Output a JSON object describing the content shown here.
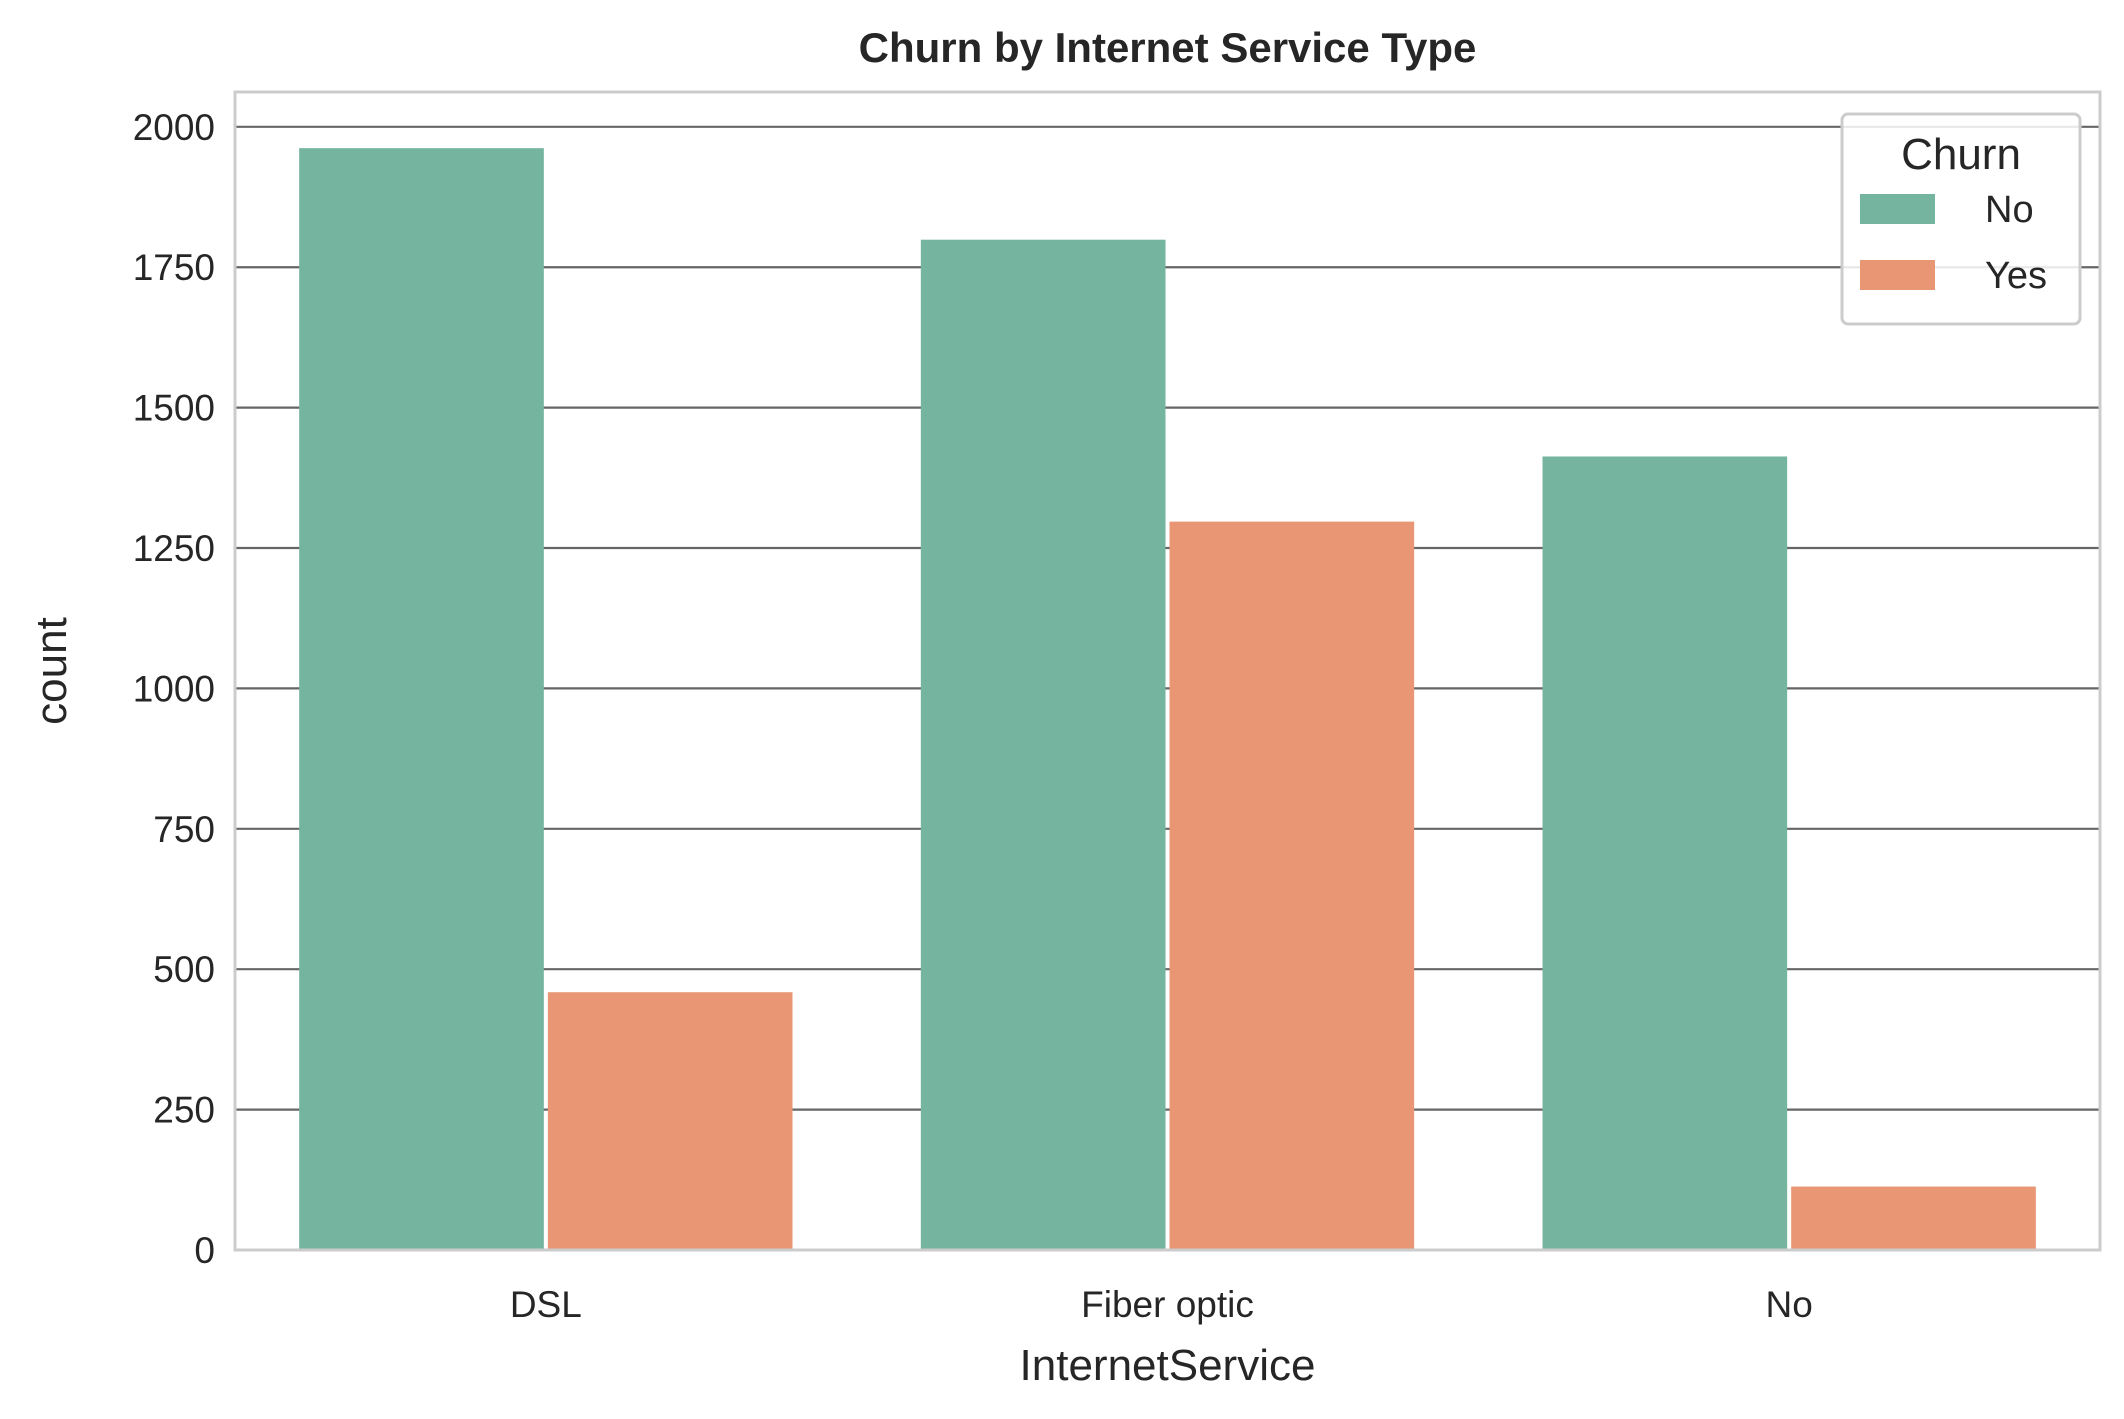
{
  "chart_data": {
    "type": "bar",
    "title": "Churn by Internet Service Type",
    "xlabel": "InternetService",
    "ylabel": "count",
    "categories": [
      "DSL",
      "Fiber optic",
      "No"
    ],
    "series": [
      {
        "name": "No",
        "values": [
          1962,
          1799,
          1413
        ],
        "color": "#75b5a0"
      },
      {
        "name": "Yes",
        "values": [
          459,
          1297,
          113
        ],
        "color": "#e99674"
      }
    ],
    "ylim": [
      0,
      2062
    ],
    "yticks": [
      0,
      250,
      500,
      750,
      1000,
      1250,
      1500,
      1750,
      2000
    ],
    "grid": true,
    "legend": {
      "title": "Churn",
      "placement": "top-right"
    }
  }
}
